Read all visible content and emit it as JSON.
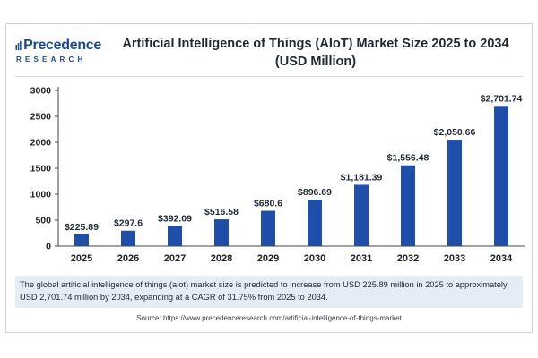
{
  "header": {
    "logo_word": "Precedence",
    "logo_sub": "RESEARCH",
    "title_line1": "Artificial Intelligence of Things (AIoT) Market Size 2025 to 2034",
    "title_line2": "(USD Million)"
  },
  "colors": {
    "bar": "#1f4fa8",
    "brand": "#1a4a8a",
    "desc_bg": "#e4ecf5"
  },
  "chart_data": {
    "type": "bar",
    "title": "Artificial Intelligence of Things (AIoT) Market Size 2025 to 2034 (USD Million)",
    "categories": [
      "2025",
      "2026",
      "2027",
      "2028",
      "2029",
      "2030",
      "2031",
      "2032",
      "2033",
      "2034"
    ],
    "values": [
      225.89,
      297.6,
      392.09,
      516.58,
      680.6,
      896.69,
      1181.39,
      1556.48,
      2050.66,
      2701.74
    ],
    "data_labels": [
      "$225.89",
      "$297.6",
      "$392.09",
      "$516.58",
      "$680.6",
      "$896.69",
      "$1,181.39",
      "$1,556.48",
      "$2,050.66",
      "$2,701.74"
    ],
    "yticks": [
      0,
      500,
      1000,
      1500,
      2000,
      2500,
      3000
    ],
    "ylim": [
      0,
      3000
    ],
    "xlabel": "",
    "ylabel": "",
    "grid": false,
    "legend": "none"
  },
  "description": "The global artificial intelligence of things (aiot) market size is predicted to increase from USD 225.89 million in 2025 to approximately USD 2,701.74 million by 2034, expanding at a CAGR of 31.75% from 2025 to 2034.",
  "source": "Source: https://www.precedenceresearch.com/artificial-intelligence-of-things-market"
}
